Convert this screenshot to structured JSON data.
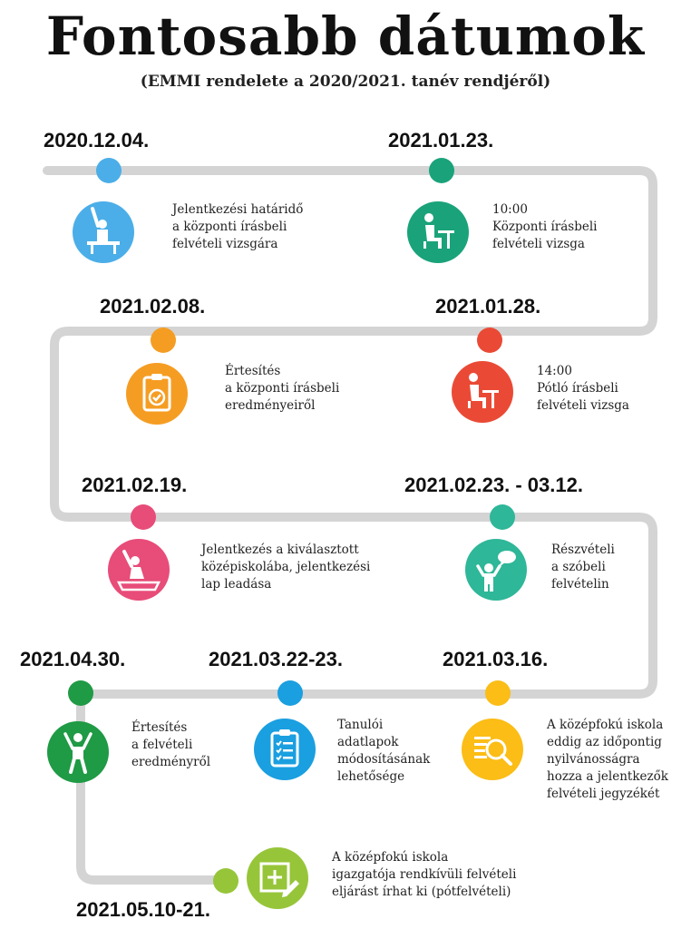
{
  "title": "Fontosabb dátumok",
  "subtitle": "(EMMI rendelete a 2020/2021. tanév rendjéről)",
  "events": [
    {
      "date": "2020.12.04.",
      "color": "#4baee8",
      "icon": "raised-hand-student-icon",
      "lines": [
        "Jelentkezési határidő",
        "a központi írásbeli",
        "felvételi vizsgára"
      ]
    },
    {
      "date": "2021.01.23.",
      "color": "#1aa37a",
      "icon": "student-at-desk-icon",
      "lines": [
        "10:00",
        "Központi írásbeli",
        "felvételi vizsga"
      ]
    },
    {
      "date": "2021.01.28.",
      "color": "#ea4a35",
      "icon": "student-at-desk-icon",
      "lines": [
        "14:00",
        "Pótló írásbeli",
        "felvételi vizsga"
      ]
    },
    {
      "date": "2021.02.08.",
      "color": "#f59d23",
      "icon": "clipboard-check-icon",
      "lines": [
        "Értesítés",
        "a központi írásbeli",
        "eredményeiről"
      ]
    },
    {
      "date": "2021.02.19.",
      "color": "#e84c78",
      "icon": "student-writing-icon",
      "lines": [
        "Jelentkezés a kiválasztott",
        "középiskolába, jelentkezési",
        "lap leadása"
      ]
    },
    {
      "date": "2021.02.23. - 03.12.",
      "color": "#2eb798",
      "icon": "speaking-person-icon",
      "lines": [
        "Részvételi",
        "a szóbeli",
        "felvételin"
      ]
    },
    {
      "date": "2021.03.16.",
      "color": "#fbbd16",
      "icon": "magnifier-list-icon",
      "lines": [
        "A középfokú iskola",
        "eddig az időpontig",
        "nyilvánosságra",
        "hozza a jelentkezők",
        "felvételi jegyzékét"
      ]
    },
    {
      "date": "2021.03.22-23.",
      "color": "#1a9fe0",
      "icon": "clipboard-list-icon",
      "lines": [
        "Tanulói",
        "adatlapok",
        "módosításának",
        "lehetősége"
      ]
    },
    {
      "date": "2021.04.30.",
      "color": "#1f9a45",
      "icon": "cheering-person-icon",
      "lines": [
        "Értesítés",
        "a felvételi",
        "eredményről"
      ]
    },
    {
      "date": "2021.05.10-21.",
      "color": "#97c53a",
      "icon": "edit-document-icon",
      "lines": [
        "A középfokú iskola",
        "igazgatója rendkívüli felvételi",
        "eljárást írhat ki (pótfelvételi)"
      ]
    }
  ]
}
